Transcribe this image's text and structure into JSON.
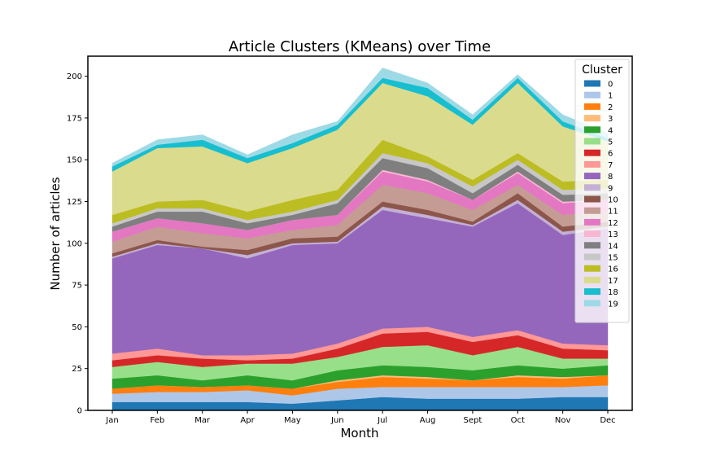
{
  "chart_data": {
    "type": "area",
    "title": "Article Clusters (KMeans) over Time",
    "xlabel": "Month",
    "ylabel": "Number of articles",
    "categories": [
      "Jan",
      "Feb",
      "Mar",
      "Apr",
      "May",
      "Jun",
      "Jul",
      "Aug",
      "Sept",
      "Oct",
      "Nov",
      "Dec"
    ],
    "ylim": [
      0,
      212
    ],
    "yticks": [
      0,
      25,
      50,
      75,
      100,
      125,
      150,
      175,
      200
    ],
    "grid": false,
    "stacked": true,
    "legend": {
      "title": "Cluster",
      "placement": "top-right"
    },
    "series": [
      {
        "name": "0",
        "color": "#1f77b4",
        "values": [
          5,
          5,
          5,
          5,
          4,
          6,
          8,
          7,
          7,
          7,
          8,
          8
        ]
      },
      {
        "name": "1",
        "color": "#aec7e8",
        "values": [
          5,
          6,
          6,
          7,
          5,
          7,
          6,
          7,
          7,
          7,
          6,
          7
        ]
      },
      {
        "name": "2",
        "color": "#ff7f0e",
        "values": [
          3,
          4,
          3,
          3,
          4,
          4,
          6,
          5,
          4,
          6,
          5,
          6
        ]
      },
      {
        "name": "3",
        "color": "#ffbb78",
        "values": [
          0,
          0,
          0,
          0,
          0,
          1,
          1,
          1,
          0,
          1,
          1,
          0
        ]
      },
      {
        "name": "4",
        "color": "#2ca02c",
        "values": [
          6,
          6,
          4,
          6,
          5,
          6,
          6,
          6,
          6,
          6,
          5,
          6
        ]
      },
      {
        "name": "5",
        "color": "#98df8a",
        "values": [
          7,
          8,
          8,
          7,
          10,
          8,
          11,
          13,
          9,
          11,
          6,
          4
        ]
      },
      {
        "name": "6",
        "color": "#d62728",
        "values": [
          4,
          4,
          5,
          2,
          3,
          5,
          8,
          8,
          8,
          7,
          6,
          5
        ]
      },
      {
        "name": "7",
        "color": "#ff9896",
        "values": [
          4,
          4,
          2,
          3,
          3,
          3,
          3,
          3,
          3,
          3,
          3,
          3
        ]
      },
      {
        "name": "8",
        "color": "#9467bd",
        "values": [
          57,
          62,
          64,
          58,
          65,
          60,
          71,
          65,
          66,
          76,
          65,
          70
        ]
      },
      {
        "name": "9",
        "color": "#c5b0d5",
        "values": [
          1,
          1,
          0,
          2,
          1,
          1,
          2,
          2,
          1,
          2,
          2,
          1
        ]
      },
      {
        "name": "10",
        "color": "#8c564b",
        "values": [
          2,
          2,
          1,
          3,
          3,
          3,
          3,
          3,
          2,
          4,
          3,
          3
        ]
      },
      {
        "name": "11",
        "color": "#c49c94",
        "values": [
          7,
          8,
          8,
          7,
          5,
          7,
          10,
          10,
          7,
          5,
          7,
          6
        ]
      },
      {
        "name": "12",
        "color": "#e377c2",
        "values": [
          6,
          5,
          6,
          5,
          6,
          6,
          8,
          7,
          6,
          7,
          7,
          7
        ]
      },
      {
        "name": "13",
        "color": "#f7b6d2",
        "values": [
          0,
          0,
          0,
          0,
          0,
          0,
          1,
          1,
          0,
          1,
          1,
          0
        ]
      },
      {
        "name": "14",
        "color": "#7f7f7f",
        "values": [
          3,
          4,
          7,
          4,
          3,
          7,
          7,
          7,
          4,
          4,
          4,
          4
        ]
      },
      {
        "name": "15",
        "color": "#c7c7c7",
        "values": [
          2,
          2,
          2,
          2,
          2,
          2,
          3,
          3,
          4,
          3,
          3,
          3
        ]
      },
      {
        "name": "16",
        "color": "#bcbd22",
        "values": [
          5,
          4,
          5,
          5,
          7,
          6,
          8,
          4,
          4,
          4,
          5,
          5
        ]
      },
      {
        "name": "17",
        "color": "#dbdb8d",
        "values": [
          26,
          32,
          32,
          29,
          31,
          36,
          34,
          36,
          33,
          42,
          33,
          23
        ]
      },
      {
        "name": "18",
        "color": "#17becf",
        "values": [
          3,
          2,
          4,
          3,
          3,
          3,
          3,
          5,
          3,
          3,
          3,
          2
        ]
      },
      {
        "name": "19",
        "color": "#9edae5",
        "values": [
          2,
          3,
          3,
          2,
          5,
          2,
          6,
          3,
          3,
          2,
          4,
          3
        ]
      }
    ]
  }
}
